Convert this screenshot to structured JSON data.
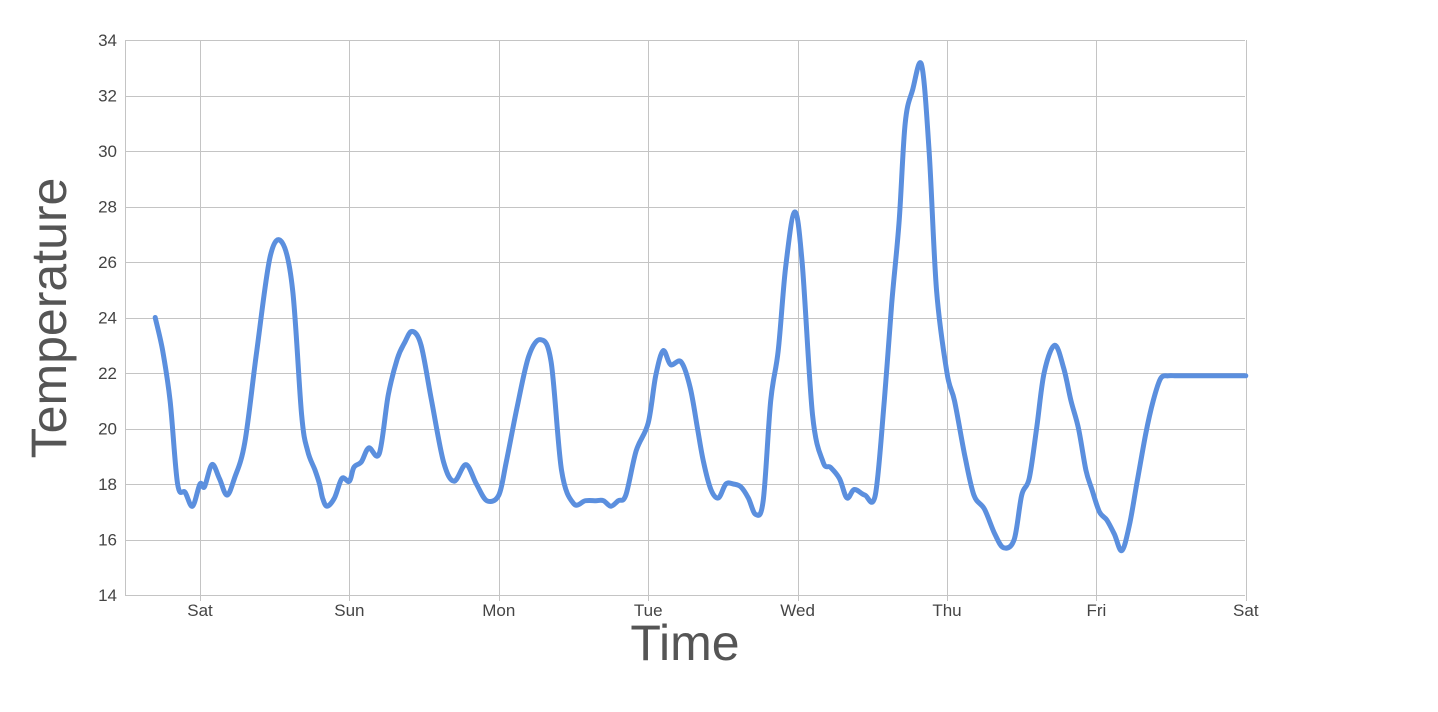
{
  "chart_data": {
    "type": "line",
    "xlabel": "Time",
    "ylabel": "Temperature",
    "ylim": [
      14,
      34
    ],
    "yticks": [
      14,
      16,
      18,
      20,
      22,
      24,
      26,
      28,
      30,
      32,
      34
    ],
    "xlim_days": [
      -0.3,
      7.0
    ],
    "xtick_labels": [
      "Sat",
      "Sun",
      "Mon",
      "Tue",
      "Wed",
      "Thu",
      "Fri",
      "Sat"
    ],
    "grid": true,
    "colors": {
      "series": "#5b8fde"
    },
    "series": [
      {
        "x_days": [
          -0.3,
          -0.25,
          -0.2,
          -0.15,
          -0.1,
          -0.05,
          0.0,
          0.03,
          0.08,
          0.13,
          0.18,
          0.23,
          0.3,
          0.38,
          0.47,
          0.55,
          0.62,
          0.68,
          0.72,
          0.77,
          0.8,
          0.82,
          0.85,
          0.9,
          0.95,
          1.0,
          1.03,
          1.08,
          1.13,
          1.2,
          1.26,
          1.32,
          1.37,
          1.42,
          1.48,
          1.55,
          1.63,
          1.7,
          1.78,
          1.85,
          1.92,
          2.0,
          2.05,
          2.12,
          2.2,
          2.28,
          2.35,
          2.42,
          2.5,
          2.58,
          2.65,
          2.7,
          2.75,
          2.8,
          2.85,
          2.92,
          3.0,
          3.05,
          3.1,
          3.15,
          3.22,
          3.28,
          3.33,
          3.37,
          3.42,
          3.47,
          3.52,
          3.57,
          3.62,
          3.67,
          3.72,
          3.77,
          3.82,
          3.87,
          3.92,
          3.98,
          4.03,
          4.1,
          4.17,
          4.22,
          4.28,
          4.33,
          4.38,
          4.45,
          4.52,
          4.58,
          4.63,
          4.68,
          4.72,
          4.77,
          4.83,
          4.88,
          4.93,
          5.0,
          5.05,
          5.12,
          5.18,
          5.25,
          5.32,
          5.38,
          5.45,
          5.5,
          5.55,
          5.6,
          5.65,
          5.72,
          5.78,
          5.83,
          5.88,
          5.93,
          5.97,
          6.02,
          6.07,
          6.12,
          6.17,
          6.22,
          6.27,
          6.33,
          6.38,
          6.43,
          6.48,
          6.53,
          6.58,
          6.63,
          6.68,
          6.73,
          6.78,
          6.85,
          6.92,
          7.0
        ],
        "y": [
          24.0,
          22.8,
          21.0,
          18.0,
          17.7,
          17.2,
          18.0,
          17.9,
          18.7,
          18.2,
          17.6,
          18.2,
          19.5,
          22.8,
          26.2,
          26.7,
          25.0,
          20.5,
          19.2,
          18.5,
          18.0,
          17.5,
          17.2,
          17.5,
          18.2,
          18.1,
          18.6,
          18.8,
          19.3,
          19.1,
          21.2,
          22.5,
          23.1,
          23.5,
          23.0,
          21.0,
          18.8,
          18.1,
          18.7,
          18.0,
          17.4,
          17.6,
          18.8,
          20.7,
          22.6,
          23.2,
          22.4,
          18.5,
          17.3,
          17.4,
          17.4,
          17.4,
          17.2,
          17.4,
          17.6,
          19.2,
          20.2,
          21.9,
          22.8,
          22.3,
          22.4,
          21.5,
          20.0,
          18.8,
          17.8,
          17.5,
          18.0,
          18.0,
          17.9,
          17.5,
          16.9,
          17.4,
          21.0,
          22.8,
          25.8,
          27.8,
          26.0,
          20.5,
          18.8,
          18.6,
          18.2,
          17.5,
          17.8,
          17.6,
          17.6,
          21.0,
          24.5,
          27.5,
          31.0,
          32.2,
          33.1,
          30.0,
          25.0,
          22.0,
          21.0,
          19.0,
          17.6,
          17.1,
          16.2,
          15.7,
          16.0,
          17.6,
          18.2,
          20.0,
          22.0,
          23.0,
          22.2,
          21.0,
          20.0,
          18.5,
          17.8,
          17.0,
          16.7,
          16.2,
          15.6,
          16.5,
          18.0,
          19.8,
          21.0,
          21.8,
          21.9,
          21.9,
          21.9,
          21.9,
          21.9,
          21.9,
          21.9,
          21.9,
          21.9,
          21.9
        ]
      }
    ]
  }
}
